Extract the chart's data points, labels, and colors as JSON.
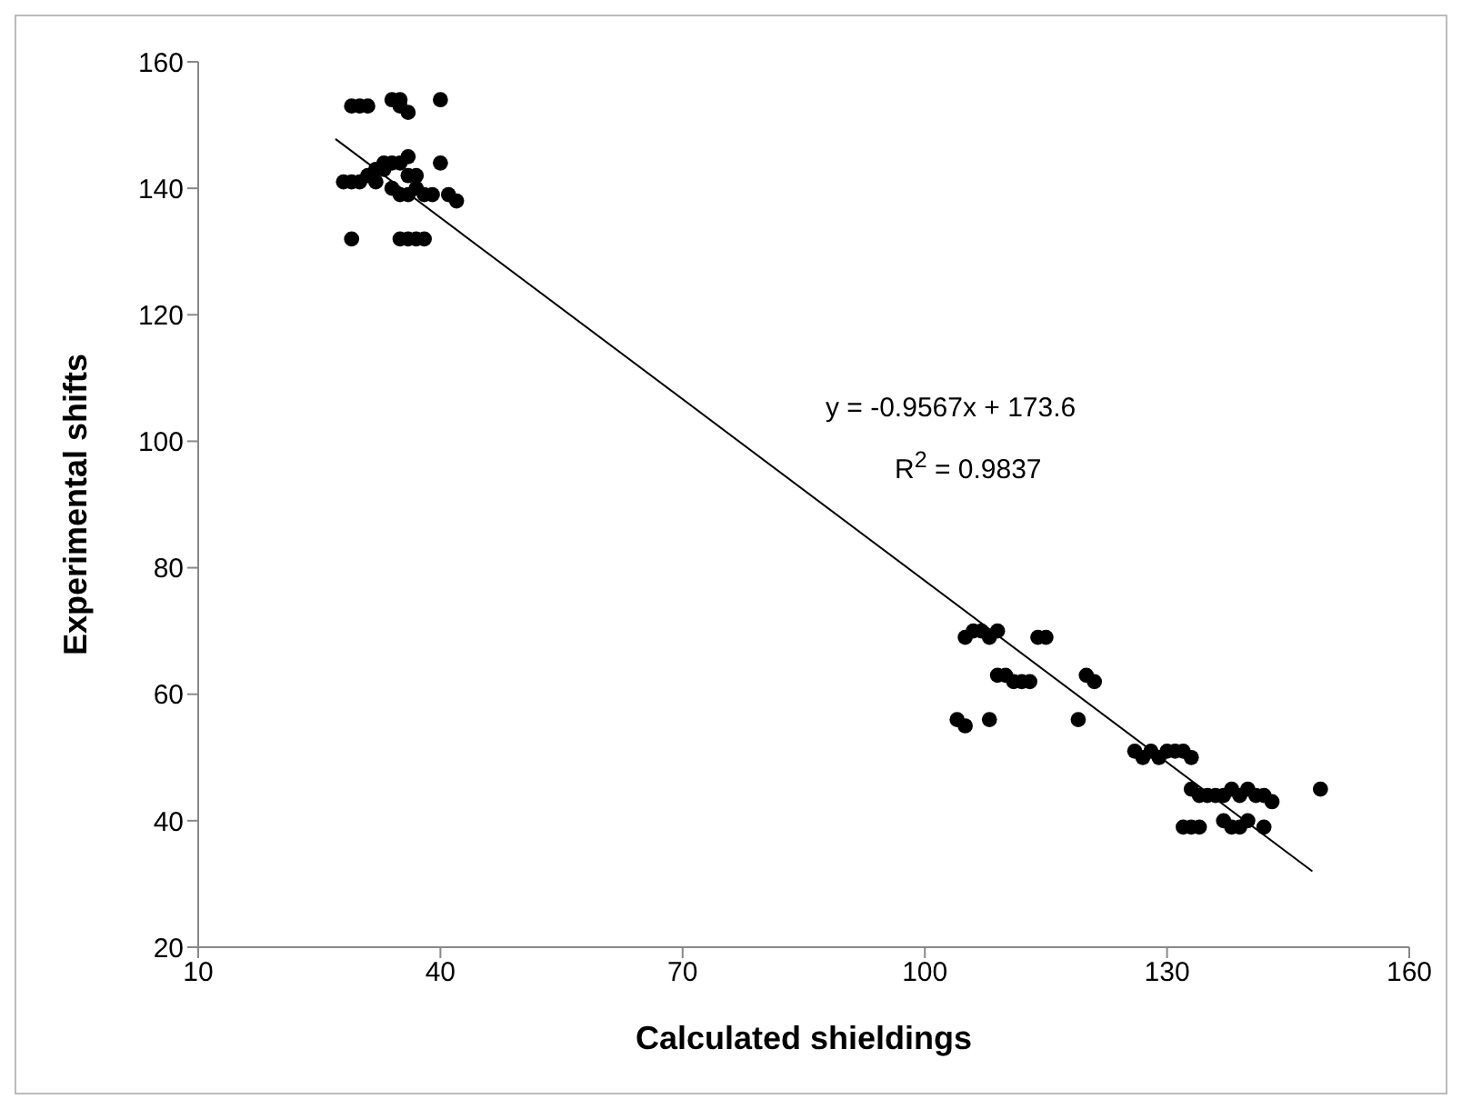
{
  "chart_data": {
    "type": "scatter",
    "xlabel": "Calculated shieldings",
    "ylabel": "Experimental shifts",
    "xlim": [
      10,
      160
    ],
    "xticks": [
      10,
      40,
      70,
      100,
      130,
      160
    ],
    "ylim": [
      20,
      160
    ],
    "yticks": [
      20,
      40,
      60,
      80,
      100,
      120,
      140,
      160
    ],
    "grid": false,
    "marker": "circle",
    "annotations": [
      "y = -0.9567x + 173.6",
      "R$^{2}$ = 0.9837"
    ],
    "series": [
      {
        "color": "#000000",
        "x": [
          28,
          29,
          30,
          29,
          29,
          30,
          31,
          31,
          32,
          32,
          33,
          34,
          34,
          35,
          35,
          36,
          34,
          35,
          35,
          36,
          37,
          36,
          37,
          37,
          38,
          39,
          38,
          40,
          40,
          41,
          42,
          33,
          36,
          35,
          36,
          104,
          105,
          105,
          106,
          107,
          108,
          109,
          108,
          109,
          110,
          111,
          112,
          113,
          114,
          115,
          119,
          120,
          121,
          126,
          127,
          128,
          129,
          130,
          131,
          132,
          133,
          133,
          134,
          135,
          136,
          137,
          138,
          139,
          140,
          141,
          142,
          143,
          132,
          133,
          134,
          137,
          138,
          139,
          140,
          142,
          149
        ],
        "values": [
          141,
          141,
          141,
          132,
          153,
          153,
          153,
          142,
          143,
          141,
          144,
          144,
          154,
          154,
          153,
          152,
          140,
          139,
          132,
          132,
          132,
          142,
          142,
          140,
          139,
          139,
          132,
          154,
          144,
          139,
          138,
          143,
          145,
          144,
          139,
          56,
          55,
          69,
          70,
          70,
          69,
          70,
          56,
          63,
          63,
          62,
          62,
          62,
          69,
          69,
          56,
          63,
          62,
          51,
          50,
          51,
          50,
          51,
          51,
          51,
          50,
          45,
          44,
          44,
          44,
          44,
          45,
          44,
          45,
          44,
          44,
          43,
          39,
          39,
          39,
          40,
          39,
          39,
          40,
          39,
          45
        ]
      },
      {
        "type": "line",
        "color": "#000000",
        "line_style": "solid",
        "marker": "none",
        "x": [
          27,
          148
        ],
        "values": [
          147.8,
          32
        ]
      }
    ]
  }
}
